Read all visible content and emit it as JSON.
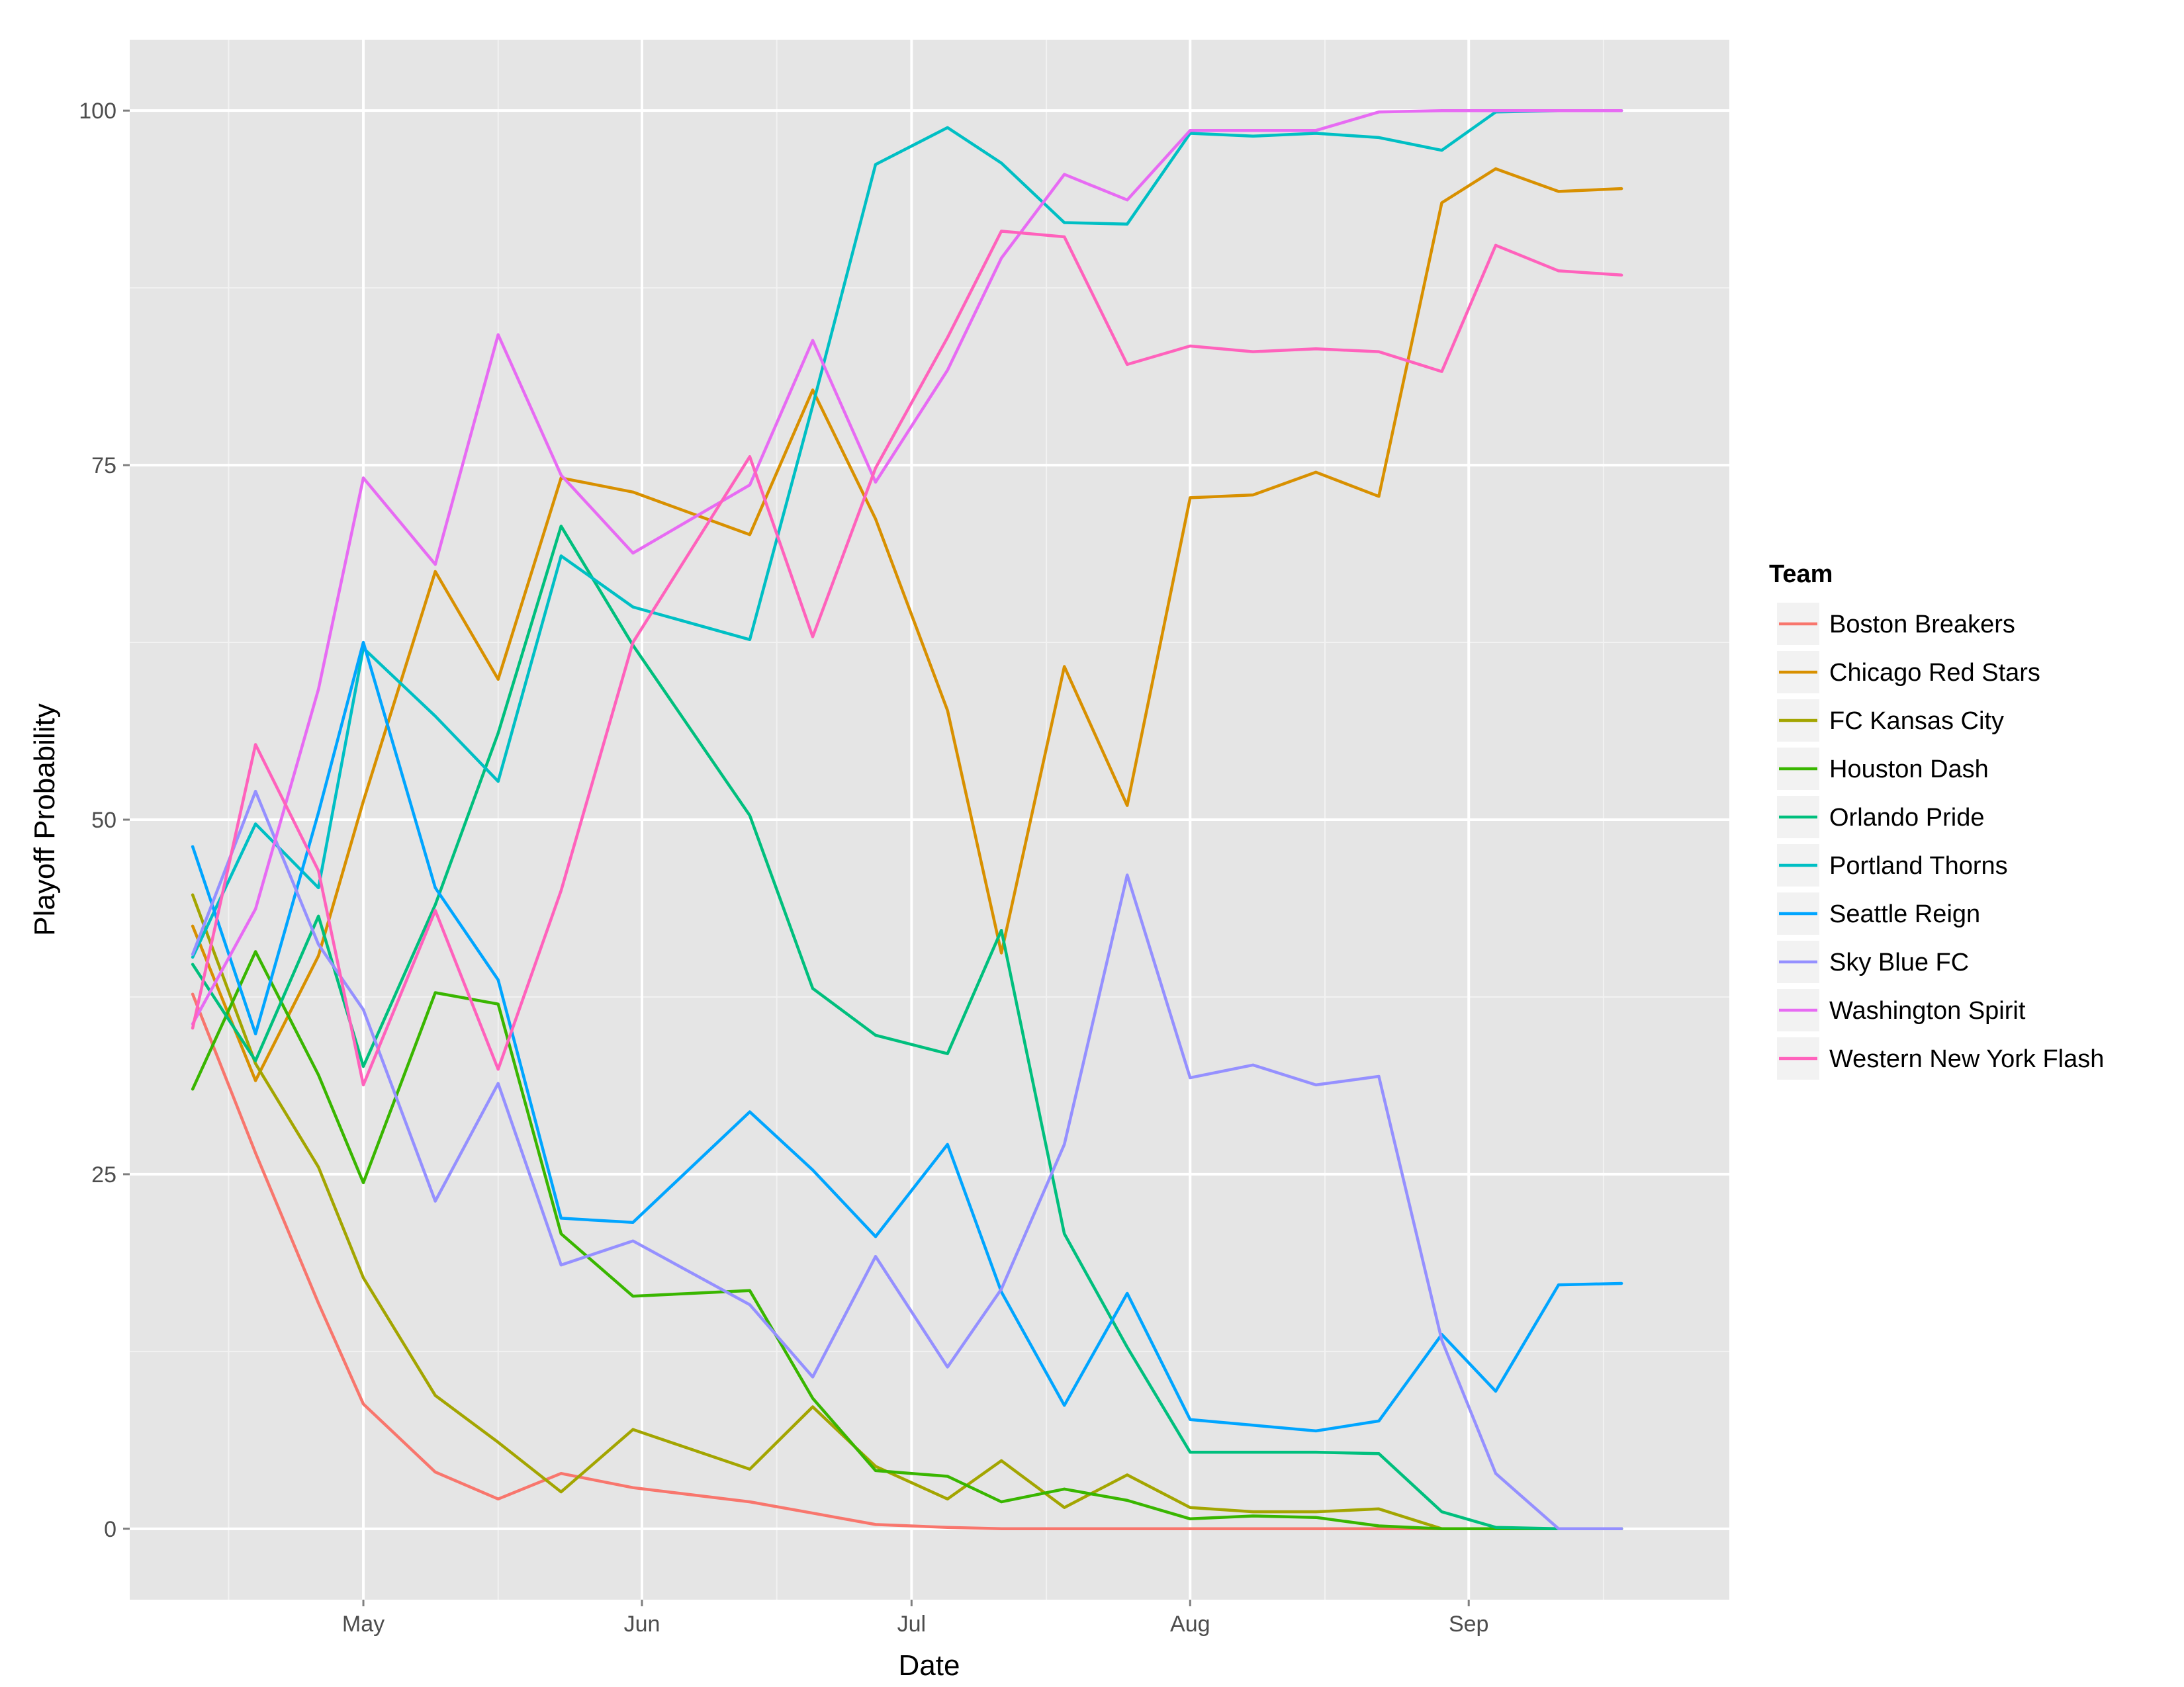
{
  "chart_data": {
    "type": "line",
    "title": "",
    "xlabel": "Date",
    "ylabel": "Playoff Probability",
    "ylim": [
      -5,
      105
    ],
    "xlim": [
      "2016-04-05",
      "2016-09-30"
    ],
    "x_ticks": [
      {
        "date": "2016-05-01",
        "label": "May"
      },
      {
        "date": "2016-06-01",
        "label": "Jun"
      },
      {
        "date": "2016-07-01",
        "label": "Jul"
      },
      {
        "date": "2016-08-01",
        "label": "Aug"
      },
      {
        "date": "2016-09-01",
        "label": "Sep"
      }
    ],
    "x_minor_ticks": [
      "2016-04-16",
      "2016-05-16",
      "2016-06-16",
      "2016-07-16",
      "2016-08-16",
      "2016-09-16"
    ],
    "y_ticks": [
      0,
      25,
      50,
      75,
      100
    ],
    "y_minor_ticks": [
      12.5,
      37.5,
      62.5,
      87.5
    ],
    "grid": true,
    "legend": {
      "title": "Team",
      "position": "right"
    },
    "x": [
      "2016-04-12",
      "2016-04-19",
      "2016-04-26",
      "2016-05-01",
      "2016-05-09",
      "2016-05-16",
      "2016-05-23",
      "2016-05-31",
      "2016-06-13",
      "2016-06-20",
      "2016-06-27",
      "2016-07-05",
      "2016-07-11",
      "2016-07-18",
      "2016-07-25",
      "2016-08-01",
      "2016-08-08",
      "2016-08-15",
      "2016-08-22",
      "2016-08-29",
      "2016-09-04",
      "2016-09-11",
      "2016-09-18"
    ],
    "series": [
      {
        "name": "Boston Breakers",
        "color": "#F8766D",
        "values": [
          37.7,
          26.5,
          15.9,
          8.8,
          4.0,
          2.1,
          3.9,
          2.9,
          1.9,
          1.1,
          0.3,
          0.1,
          0,
          0,
          0,
          0,
          0,
          0,
          0,
          0,
          0,
          0,
          0
        ]
      },
      {
        "name": "Chicago Red Stars",
        "color": "#D89000",
        "values": [
          42.5,
          31.6,
          40.4,
          51.3,
          67.5,
          59.9,
          74.1,
          73.1,
          70.1,
          80.3,
          71.2,
          57.7,
          40.6,
          60.8,
          51.0,
          72.7,
          72.9,
          74.5,
          72.8,
          93.5,
          95.9,
          94.3,
          94.5
        ]
      },
      {
        "name": "FC Kansas City",
        "color": "#A3A500",
        "values": [
          44.7,
          32.8,
          25.5,
          17.7,
          9.4,
          6.1,
          2.6,
          7.0,
          4.2,
          8.6,
          4.4,
          2.1,
          4.8,
          1.5,
          3.8,
          1.5,
          1.2,
          1.2,
          1.4,
          0,
          0,
          0,
          0
        ]
      },
      {
        "name": "Houston Dash",
        "color": "#39B600",
        "values": [
          31.0,
          40.7,
          32.0,
          24.4,
          37.8,
          37.0,
          20.8,
          16.4,
          16.8,
          9.2,
          4.1,
          3.7,
          1.9,
          2.8,
          2.0,
          0.7,
          0.9,
          0.8,
          0.2,
          0,
          0,
          0,
          0
        ]
      },
      {
        "name": "Orlando Pride",
        "color": "#00BF7D",
        "values": [
          39.8,
          33.0,
          43.2,
          32.6,
          44.0,
          56.1,
          70.7,
          62.3,
          50.3,
          38.1,
          34.8,
          33.5,
          42.2,
          20.8,
          12.8,
          5.4,
          5.4,
          5.4,
          5.3,
          1.2,
          0.1,
          0,
          0
        ]
      },
      {
        "name": "Portland Thorns",
        "color": "#00BFC4",
        "values": [
          40.3,
          49.7,
          45.2,
          62.1,
          57.3,
          52.7,
          68.6,
          65.0,
          62.7,
          79.2,
          96.2,
          98.8,
          96.3,
          92.1,
          92.0,
          98.4,
          98.2,
          98.4,
          98.1,
          97.2,
          99.9,
          100,
          100
        ]
      },
      {
        "name": "Seattle Reign",
        "color": "#00A5FF",
        "values": [
          48.1,
          34.9,
          50.5,
          62.5,
          45.2,
          38.7,
          21.9,
          21.6,
          29.4,
          25.3,
          20.6,
          27.1,
          16.7,
          8.7,
          16.6,
          7.7,
          7.3,
          6.9,
          7.6,
          13.7,
          9.7,
          17.2,
          17.3
        ]
      },
      {
        "name": "Sky Blue FC",
        "color": "#9590FF",
        "values": [
          40.5,
          52.0,
          41.2,
          36.6,
          23.1,
          31.4,
          18.6,
          20.3,
          15.8,
          10.7,
          19.2,
          11.4,
          16.9,
          27.1,
          46.1,
          31.8,
          32.7,
          31.3,
          31.9,
          13.3,
          3.9,
          0,
          0
        ]
      },
      {
        "name": "Washington Spirit",
        "color": "#E76BF3",
        "values": [
          35.6,
          43.7,
          59.2,
          74.1,
          68.0,
          84.2,
          74.3,
          68.8,
          73.6,
          83.8,
          73.8,
          81.7,
          89.6,
          95.5,
          93.7,
          98.6,
          98.6,
          98.6,
          99.9,
          100,
          100,
          100,
          100
        ]
      },
      {
        "name": "Western New York Flash",
        "color": "#FF62BC",
        "values": [
          35.3,
          55.3,
          46.4,
          31.3,
          43.6,
          32.4,
          45.0,
          62.5,
          75.6,
          62.9,
          74.8,
          84.0,
          91.5,
          91.1,
          82.1,
          83.4,
          83.0,
          83.2,
          83.0,
          81.6,
          90.5,
          88.7,
          88.4
        ]
      }
    ]
  }
}
